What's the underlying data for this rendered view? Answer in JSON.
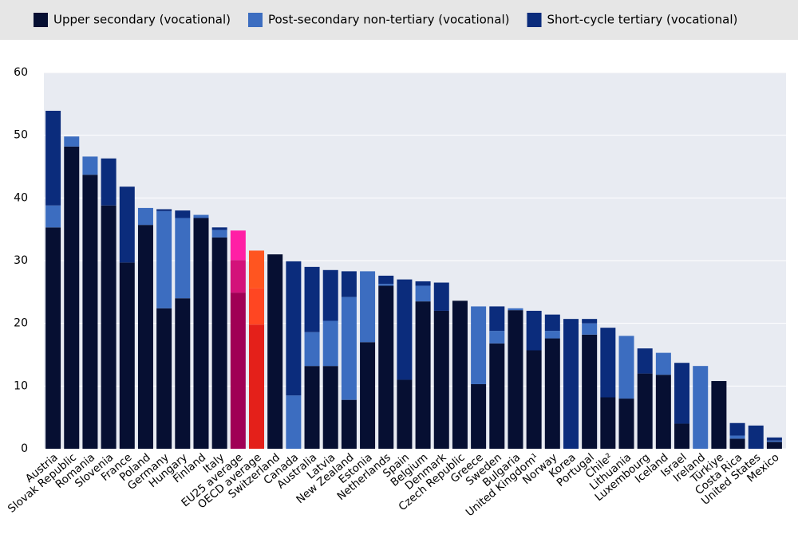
{
  "chart_data": {
    "type": "stacked_bar",
    "categories": [
      "Austria",
      "Slovak Republic",
      "Romania",
      "Slovenia",
      "France",
      "Poland",
      "Germany",
      "Hungary",
      "Finland",
      "Italy",
      "EU25 average",
      "OECD average",
      "Switzerland",
      "Canada",
      "Australia",
      "Latvia",
      "New Zealand",
      "Estonia",
      "Netherlands",
      "Spain",
      "Belgium",
      "Denmark",
      "Czech Republic",
      "Greece",
      "Sweden",
      "Bulgaria",
      "United Kingdom¹",
      "Norway",
      "Korea",
      "Portugal",
      "Chile²",
      "Lithuania",
      "Luxembourg",
      "Iceland",
      "Israel",
      "Ireland",
      "Türkiye",
      "Costa Rica",
      "United States",
      "Mexico"
    ],
    "series": [
      {
        "name": "Upper secondary (vocational)",
        "color": "#060f32",
        "values": [
          35.3,
          48.2,
          43.7,
          38.8,
          29.7,
          35.7,
          22.4,
          24.0,
          36.8,
          33.7,
          24.9,
          19.8,
          31.0,
          0,
          13.2,
          13.2,
          7.8,
          17.0,
          26.0,
          11.0,
          23.5,
          22.0,
          23.6,
          10.3,
          16.8,
          22.1,
          15.7,
          17.6,
          0,
          18.2,
          8.2,
          8.0,
          12.0,
          11.8,
          4.0,
          0,
          10.8,
          1.6,
          0,
          1.1
        ]
      },
      {
        "name": "Post-secondary non-tertiary (vocational)",
        "color": "#3c6dc0",
        "values": [
          3.5,
          1.6,
          2.9,
          0,
          0,
          2.7,
          15.5,
          12.8,
          0.5,
          1.2,
          5.2,
          5.8,
          0,
          8.5,
          5.4,
          7.2,
          16.4,
          11.3,
          0.3,
          0,
          2.5,
          0,
          0,
          12.4,
          2.0,
          0.3,
          0,
          1.2,
          0,
          1.8,
          0,
          10.0,
          0,
          3.5,
          0,
          13.2,
          0,
          0.5,
          0,
          0.2
        ]
      },
      {
        "name": "Short-cycle tertiary (vocational)",
        "color": "#0b2c7c",
        "values": [
          15.1,
          0,
          0,
          7.5,
          12.1,
          0,
          0.3,
          1.2,
          0,
          0.4,
          4.7,
          6.0,
          0,
          21.4,
          10.4,
          8.1,
          4.1,
          0,
          1.3,
          16.0,
          0.7,
          4.5,
          0,
          0,
          3.9,
          0,
          6.3,
          2.6,
          20.7,
          0.7,
          11.1,
          0,
          4.0,
          0,
          9.7,
          0,
          0,
          2.0,
          3.7,
          0.5
        ]
      }
    ],
    "highlight_colors": {
      "EU25 average": [
        "#a00055",
        "#d3127a",
        "#ff1fa5"
      ],
      "OECD average": [
        "#e4201a",
        "#ff4622",
        "#ff5520"
      ]
    },
    "ylim": [
      0,
      60
    ],
    "yticks": [
      0,
      10,
      20,
      30,
      40,
      50,
      60
    ],
    "grid": true
  }
}
